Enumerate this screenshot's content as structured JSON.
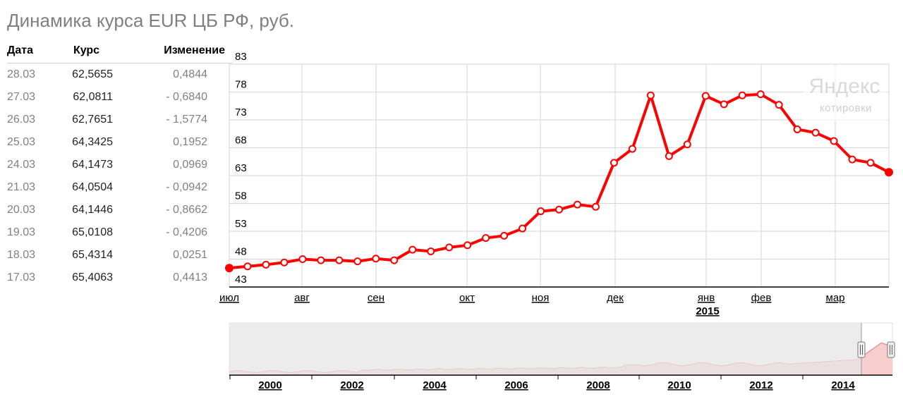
{
  "page": {
    "title": "Динамика курса EUR ЦБ РФ, руб."
  },
  "table": {
    "headers": {
      "date": "Дата",
      "rate": "Курс",
      "change": "Изменение"
    },
    "rows": [
      {
        "date": "28.03",
        "rate": "62,5655",
        "change": "0,4844"
      },
      {
        "date": "27.03",
        "rate": "62,0811",
        "change": "- 0,6840"
      },
      {
        "date": "26.03",
        "rate": "62,7651",
        "change": "- 1,5774"
      },
      {
        "date": "25.03",
        "rate": "64,3425",
        "change": "0,1952"
      },
      {
        "date": "24.03",
        "rate": "64,1473",
        "change": "0,0969"
      },
      {
        "date": "21.03",
        "rate": "64,0504",
        "change": "- 0,0942"
      },
      {
        "date": "20.03",
        "rate": "64,1446",
        "change": "- 0,8662"
      },
      {
        "date": "19.03",
        "rate": "65,0108",
        "change": "- 0,4206"
      },
      {
        "date": "18.03",
        "rate": "65,4314",
        "change": "0,0251"
      },
      {
        "date": "17.03",
        "rate": "65,4063",
        "change": "0,4413"
      }
    ]
  },
  "watermark": {
    "brand": "Яндекс",
    "sub": "котировки"
  },
  "colors": {
    "line": "#ff0000",
    "grid": "#d6d6d6",
    "navigator_fill": "#f6c9c9",
    "navigator_bg": "#e6e6e6"
  },
  "chart_data": {
    "type": "line",
    "title": "Динамика курса EUR ЦБ РФ, руб.",
    "y_ticks": [
      "83",
      "78",
      "73",
      "68",
      "63",
      "58",
      "53",
      "48",
      "43"
    ],
    "ylim": [
      43,
      83
    ],
    "x_ticks": [
      "июл",
      "авг",
      "сен",
      "окт",
      "ноя",
      "дек",
      "янв",
      "фев",
      "мар"
    ],
    "x_year_label": "2015",
    "grid": true,
    "series": [
      {
        "x": [
          "июл",
          "",
          "",
          "",
          "авг",
          "",
          "",
          "",
          "сен",
          "",
          "",
          "",
          "",
          "окт",
          "",
          "",
          "",
          "ноя",
          "",
          "",
          "",
          "дек",
          "",
          "",
          "",
          "",
          "янв",
          "",
          "",
          "фев",
          "",
          "",
          "",
          "мар",
          "",
          "",
          ""
        ],
        "values": [
          46.4,
          46.7,
          47.0,
          47.4,
          48.0,
          47.8,
          47.8,
          47.6,
          48.1,
          47.8,
          49.7,
          49.4,
          50.1,
          50.5,
          51.8,
          52.2,
          53.5,
          56.6,
          56.9,
          57.8,
          57.4,
          65.3,
          67.8,
          77.4,
          66.5,
          68.6,
          77.3,
          75.8,
          77.4,
          77.6,
          75.7,
          71.3,
          70.7,
          69.2,
          65.9,
          65.3,
          63.6
        ]
      }
    ],
    "navigator": {
      "x_ticks": [
        "2000",
        "2002",
        "2004",
        "2006",
        "2008",
        "2010",
        "2012",
        "2014"
      ]
    }
  }
}
